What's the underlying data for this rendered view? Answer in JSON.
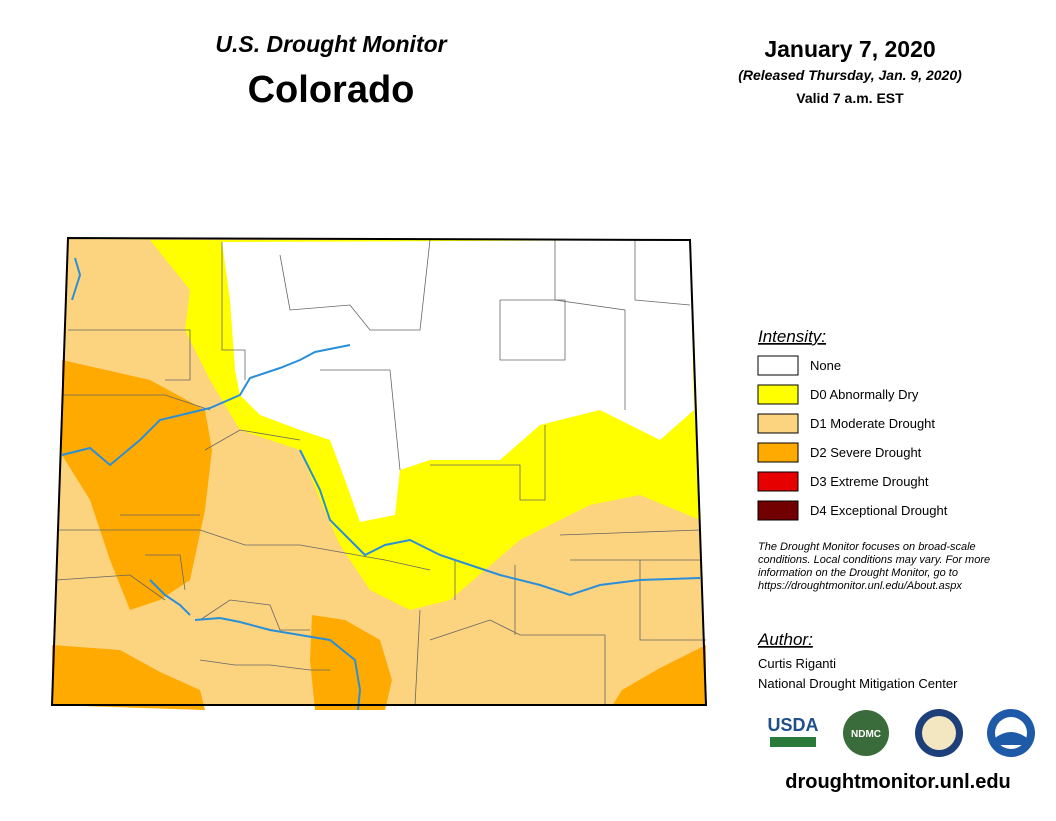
{
  "header": {
    "title": "U.S. Drought Monitor",
    "state": "Colorado",
    "date": "January 7, 2020",
    "released": "(Released Thursday, Jan. 9, 2020)",
    "valid": "Valid 7 a.m. EST"
  },
  "legend": {
    "title": "Intensity:",
    "items": [
      {
        "label": "None",
        "color": "#ffffff"
      },
      {
        "label": "D0 Abnormally Dry",
        "color": "#ffff00"
      },
      {
        "label": "D1 Moderate Drought",
        "color": "#fcd37f"
      },
      {
        "label": "D2 Severe Drought",
        "color": "#ffaa00"
      },
      {
        "label": "D3 Extreme Drought",
        "color": "#e60000"
      },
      {
        "label": "D4 Exceptional Drought",
        "color": "#730000"
      }
    ]
  },
  "note": [
    "The Drought Monitor focuses on broad-scale",
    "conditions. Local conditions may vary. For more",
    "information on the Drought Monitor, go to",
    "https://droughtmonitor.unl.edu/About.aspx"
  ],
  "author": {
    "title": "Author:",
    "lines": [
      "Curtis Riganti",
      "National Drought Mitigation Center"
    ]
  },
  "logos": [
    "USDA",
    "NDMC"
  ],
  "url": "droughtmonitor.unl.edu"
}
